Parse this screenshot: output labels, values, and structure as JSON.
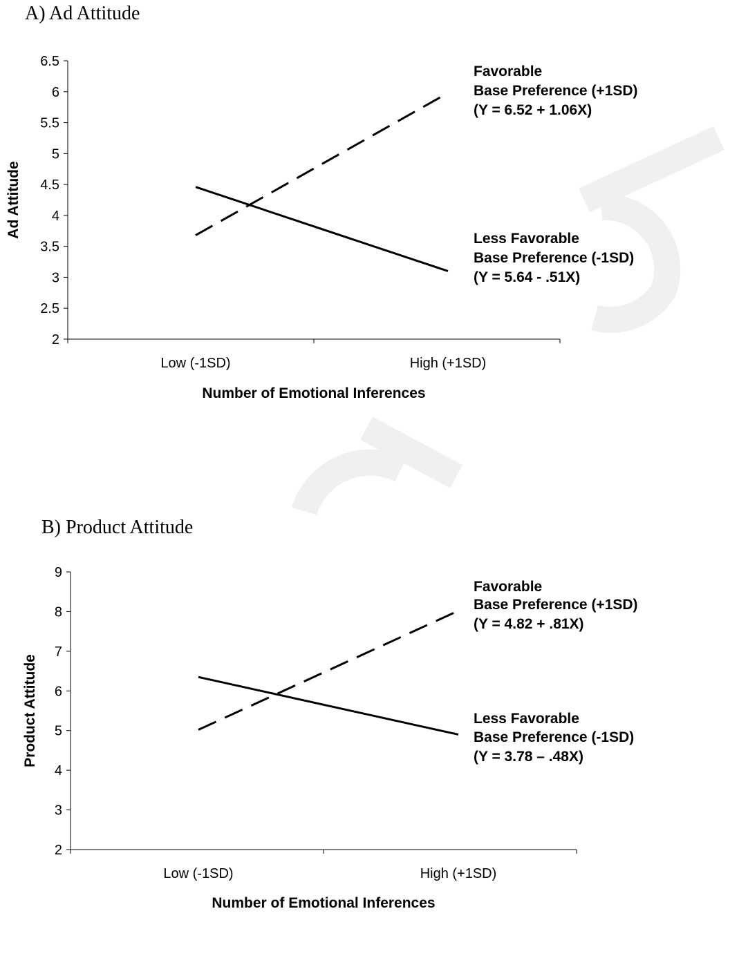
{
  "chart_data": [
    {
      "type": "line",
      "panel_title": "A) Ad Attitude",
      "ylabel": "Ad Attitude",
      "xlabel": "Number of Emotional Inferences",
      "categories": [
        "Low  (-1SD)",
        "High (+1SD)"
      ],
      "ylim": [
        2,
        6.5
      ],
      "yticks": [
        "2",
        "2.5",
        "3",
        "3.5",
        "4",
        "4.5",
        "5",
        "5.5",
        "6",
        "6.5"
      ],
      "ytick_values": [
        2,
        2.5,
        3,
        3.5,
        4,
        4.5,
        5,
        5.5,
        6,
        6.5
      ],
      "grid": false,
      "series": [
        {
          "values": [
            3.68,
            5.98
          ],
          "style": "dashed",
          "label_lines": [
            "Favorable",
            "Base Preference (+1SD)",
            "(Y = 6.52 + 1.06X)"
          ]
        },
        {
          "values": [
            4.46,
            3.1
          ],
          "style": "solid",
          "label_lines": [
            "Less Favorable",
            "Base Preference (-1SD)",
            "(Y = 5.64 - .51X)"
          ]
        }
      ]
    },
    {
      "type": "line",
      "panel_title": "B) Product Attitude",
      "ylabel": "Product Attitude",
      "xlabel": "Number of Emotional Inferences",
      "categories": [
        "Low  (-1SD)",
        "High (+1SD)"
      ],
      "ylim": [
        2,
        9
      ],
      "yticks": [
        "2",
        "3",
        "4",
        "5",
        "6",
        "7",
        "8",
        "9"
      ],
      "ytick_values": [
        2,
        3,
        4,
        5,
        6,
        7,
        8,
        9
      ],
      "grid": false,
      "series": [
        {
          "values": [
            5.02,
            8.02
          ],
          "style": "dashed",
          "label_lines": [
            "Favorable",
            "Base Preference (+1SD)",
            "(Y = 4.82 + .81X)"
          ]
        },
        {
          "values": [
            6.35,
            4.9
          ],
          "style": "solid",
          "label_lines": [
            "Less Favorable",
            "Base Preference (-1SD)",
            "(Y = 3.78 – .48X)"
          ]
        }
      ]
    }
  ]
}
